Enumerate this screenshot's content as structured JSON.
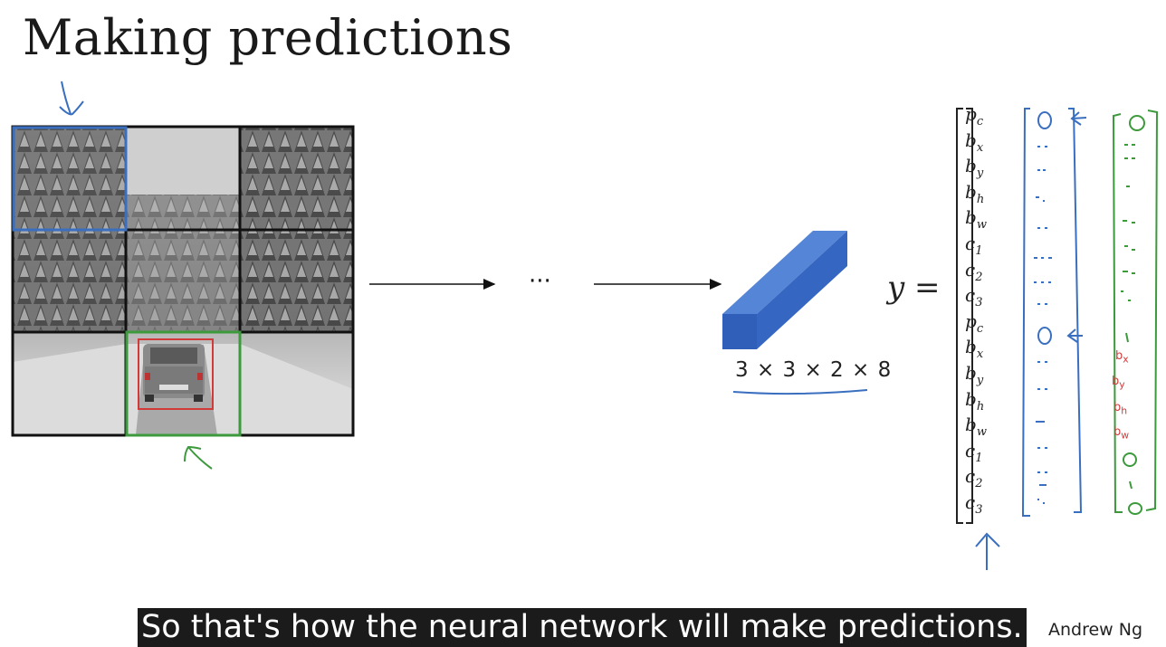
{
  "slide": {
    "title": "Making predictions",
    "ellipsis": "···",
    "output_shape": "3 × 3 × 2 × 8",
    "y_equals": "y =",
    "vector_entries": [
      {
        "base": "p",
        "sub": "c"
      },
      {
        "base": "b",
        "sub": "x"
      },
      {
        "base": "b",
        "sub": "y"
      },
      {
        "base": "b",
        "sub": "h"
      },
      {
        "base": "b",
        "sub": "w"
      },
      {
        "base": "c",
        "sub": "1"
      },
      {
        "base": "c",
        "sub": "2"
      },
      {
        "base": "c",
        "sub": "3"
      },
      {
        "base": "p",
        "sub": "c"
      },
      {
        "base": "b",
        "sub": "x"
      },
      {
        "base": "b",
        "sub": "y"
      },
      {
        "base": "b",
        "sub": "h"
      },
      {
        "base": "b",
        "sub": "w"
      },
      {
        "base": "c",
        "sub": "1"
      },
      {
        "base": "c",
        "sub": "2"
      },
      {
        "base": "c",
        "sub": "3"
      }
    ],
    "green_vector_handwriting": [
      "b",
      "b",
      "b",
      "b"
    ],
    "green_vector_subs": [
      "x",
      "y",
      "h",
      "w"
    ],
    "author": "Andrew Ng"
  },
  "caption": {
    "text": "So that's how the neural network will make predictions."
  },
  "colors": {
    "grid_line": "#111111",
    "blue_annotation": "#3a6fc0",
    "green_annotation": "#3c9a3c",
    "red_annotation": "#d23a3a",
    "prism": "#3566c1"
  }
}
